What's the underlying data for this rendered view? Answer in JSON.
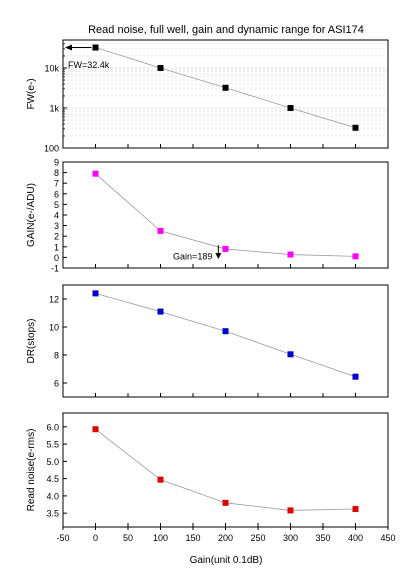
{
  "title": "Read noise, full well, gain and dynamic range for ASI174",
  "xlabel": "Gain(unit 0.1dB)",
  "chart_data": [
    {
      "type": "scatter",
      "ylabel": "FW(e-)",
      "yscale": "log",
      "x": [
        0,
        100,
        200,
        300,
        400
      ],
      "values": [
        32400,
        10000,
        3200,
        1000,
        320
      ],
      "ylim": [
        100,
        50000
      ],
      "yticks": [
        100,
        1000,
        10000
      ],
      "ytick_labels": [
        "100",
        "1k",
        "10k"
      ],
      "marker_color": "#000000",
      "grid": true,
      "annotation": "FW=32.4k"
    },
    {
      "type": "scatter",
      "ylabel": "GAIN(e-/ADU)",
      "x": [
        0,
        100,
        200,
        300,
        400
      ],
      "values": [
        7.9,
        2.5,
        0.8,
        0.27,
        0.1
      ],
      "ylim": [
        -1,
        9
      ],
      "yticks": [
        -1,
        0,
        1,
        2,
        3,
        4,
        5,
        6,
        7,
        8,
        9
      ],
      "ytick_labels": [
        "-1",
        "0",
        "1",
        "2",
        "3",
        "4",
        "5",
        "6",
        "7",
        "8",
        "9"
      ],
      "marker_color": "#ff00ff",
      "grid": false,
      "annotation": "Gain=189",
      "annotation_x": 189
    },
    {
      "type": "scatter",
      "ylabel": "DR(stops)",
      "x": [
        0,
        100,
        200,
        300,
        400
      ],
      "values": [
        12.4,
        11.1,
        9.7,
        8.05,
        6.45
      ],
      "ylim": [
        5,
        13
      ],
      "yticks": [
        6,
        8,
        10,
        12
      ],
      "ytick_labels": [
        "6",
        "8",
        "10",
        "12"
      ],
      "marker_color": "#0000cc",
      "grid": false
    },
    {
      "type": "scatter",
      "ylabel": "Read noise(e-rms)",
      "x": [
        0,
        100,
        200,
        300,
        400
      ],
      "values": [
        5.93,
        4.47,
        3.8,
        3.58,
        3.62
      ],
      "ylim": [
        3.1,
        6.4
      ],
      "yticks": [
        3.5,
        4.0,
        4.5,
        5.0,
        5.5,
        6.0
      ],
      "ytick_labels": [
        "3.5",
        "4.0",
        "4.5",
        "5.0",
        "5.5",
        "6.0"
      ],
      "marker_color": "#dd0000",
      "grid": false
    }
  ],
  "xaxis": {
    "xlim": [
      -50,
      450
    ],
    "xticks": [
      -50,
      0,
      50,
      100,
      150,
      200,
      250,
      300,
      350,
      400,
      450
    ],
    "xtick_labels": [
      "-50",
      "0",
      "50",
      "100",
      "150",
      "200",
      "250",
      "300",
      "350",
      "400",
      "450"
    ]
  }
}
